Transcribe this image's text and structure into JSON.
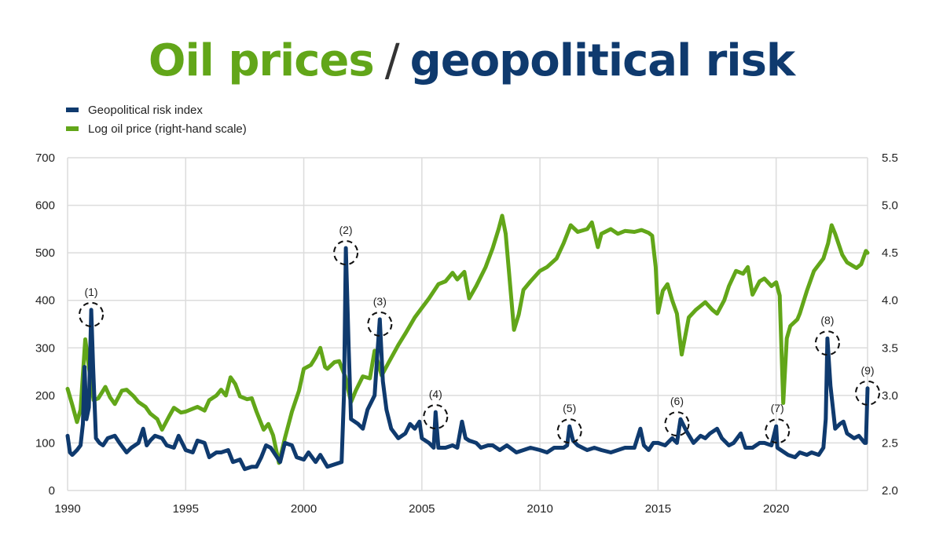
{
  "title": {
    "part1": "Oil prices",
    "separator": "/",
    "part2": "geopolitical risk"
  },
  "colors": {
    "oil": "#62a619",
    "gpr": "#0f3a6e",
    "grid": "#dcdcdc"
  },
  "chart_data": {
    "type": "line",
    "title": "Oil prices / geopolitical risk",
    "xlabel": "",
    "ylabel": "",
    "y2label": "",
    "xlim": [
      1990,
      2023.87
    ],
    "ylim": [
      0,
      700
    ],
    "y2lim": [
      2.0,
      5.5
    ],
    "grid": true,
    "legend_position": "top-left",
    "x_ticks": [
      1990,
      1995,
      2000,
      2005,
      2010,
      2015,
      2020
    ],
    "x_tick_labels": [
      "1990",
      "1995",
      "2000",
      "2005",
      "2010",
      "2015",
      "2020"
    ],
    "y_ticks": [
      0,
      100,
      200,
      300,
      400,
      500,
      600,
      700
    ],
    "y_tick_labels": [
      "0",
      "100",
      "200",
      "300",
      "400",
      "500",
      "600",
      "700"
    ],
    "y2_ticks": [
      2.0,
      2.5,
      3.0,
      3.5,
      4.0,
      4.5,
      5.0,
      5.5
    ],
    "y2_tick_labels": [
      "2.0",
      "2.5",
      "3.0",
      "3.5",
      "4.0",
      "4.5",
      "5.0",
      "5.5"
    ],
    "series": [
      {
        "name": "Geopolitical risk index",
        "axis": "left",
        "x": [
          1990.0,
          1990.1,
          1990.2,
          1990.4,
          1990.55,
          1990.65,
          1990.72,
          1990.8,
          1990.9,
          1991.0,
          1991.08,
          1991.2,
          1991.35,
          1991.5,
          1991.7,
          1992.0,
          1992.2,
          1992.5,
          1992.7,
          1993.0,
          1993.2,
          1993.35,
          1993.5,
          1993.7,
          1994.0,
          1994.2,
          1994.5,
          1994.7,
          1995.0,
          1995.3,
          1995.5,
          1995.8,
          1996.0,
          1996.3,
          1996.5,
          1996.8,
          1997.0,
          1997.3,
          1997.5,
          1997.8,
          1998.0,
          1998.2,
          1998.4,
          1998.6,
          1998.8,
          1999.0,
          1999.2,
          1999.5,
          1999.7,
          2000.0,
          2000.2,
          2000.5,
          2000.7,
          2001.0,
          2001.3,
          2001.6,
          2001.7,
          2001.78,
          2001.9,
          2002.0,
          2002.3,
          2002.5,
          2002.7,
          2003.0,
          2003.12,
          2003.22,
          2003.35,
          2003.5,
          2003.7,
          2004.0,
          2004.3,
          2004.5,
          2004.7,
          2004.9,
          2005.0,
          2005.3,
          2005.5,
          2005.58,
          2005.7,
          2006.0,
          2006.3,
          2006.5,
          2006.7,
          2006.85,
          2007.0,
          2007.3,
          2007.5,
          2007.8,
          2008.0,
          2008.3,
          2008.6,
          2009.0,
          2009.3,
          2009.6,
          2010.0,
          2010.3,
          2010.6,
          2011.0,
          2011.15,
          2011.25,
          2011.4,
          2011.6,
          2012.0,
          2012.3,
          2012.6,
          2013.0,
          2013.3,
          2013.6,
          2014.0,
          2014.25,
          2014.4,
          2014.6,
          2014.8,
          2015.0,
          2015.3,
          2015.6,
          2015.8,
          2015.95,
          2016.2,
          2016.5,
          2016.8,
          2017.0,
          2017.2,
          2017.5,
          2017.7,
          2018.0,
          2018.2,
          2018.5,
          2018.7,
          2019.0,
          2019.3,
          2019.5,
          2019.8,
          2020.0,
          2020.05,
          2020.2,
          2020.5,
          2020.8,
          2021.0,
          2021.3,
          2021.5,
          2021.8,
          2022.0,
          2022.1,
          2022.17,
          2022.3,
          2022.5,
          2022.7,
          2022.85,
          2023.0,
          2023.3,
          2023.5,
          2023.75,
          2023.8,
          2023.87
        ],
        "values": [
          115,
          80,
          75,
          85,
          95,
          140,
          260,
          150,
          175,
          380,
          260,
          110,
          100,
          95,
          110,
          115,
          100,
          80,
          90,
          100,
          130,
          95,
          105,
          115,
          110,
          95,
          90,
          115,
          85,
          80,
          105,
          100,
          70,
          80,
          80,
          85,
          60,
          65,
          45,
          50,
          50,
          70,
          95,
          90,
          75,
          60,
          100,
          95,
          70,
          65,
          80,
          60,
          75,
          50,
          55,
          60,
          200,
          510,
          300,
          150,
          140,
          130,
          170,
          200,
          290,
          360,
          230,
          170,
          130,
          110,
          120,
          140,
          130,
          145,
          110,
          100,
          90,
          165,
          90,
          90,
          95,
          90,
          145,
          110,
          105,
          100,
          90,
          95,
          95,
          85,
          95,
          80,
          85,
          90,
          85,
          80,
          90,
          90,
          95,
          135,
          105,
          95,
          85,
          90,
          85,
          80,
          85,
          90,
          90,
          130,
          95,
          85,
          100,
          100,
          95,
          110,
          100,
          150,
          125,
          100,
          115,
          110,
          120,
          130,
          110,
          95,
          100,
          120,
          90,
          90,
          100,
          100,
          95,
          135,
          90,
          85,
          75,
          70,
          80,
          75,
          80,
          75,
          90,
          150,
          320,
          220,
          130,
          140,
          145,
          120,
          110,
          115,
          100,
          100,
          215
        ]
      },
      {
        "name": "Log oil price (right-hand scale)",
        "axis": "right",
        "x": [
          1990.0,
          1990.2,
          1990.4,
          1990.55,
          1990.75,
          1990.9,
          1991.1,
          1991.3,
          1991.6,
          1991.8,
          1992.0,
          1992.3,
          1992.5,
          1992.8,
          1993.0,
          1993.3,
          1993.5,
          1993.8,
          1994.0,
          1994.3,
          1994.5,
          1994.8,
          1995.0,
          1995.3,
          1995.5,
          1995.8,
          1996.0,
          1996.3,
          1996.5,
          1996.7,
          1996.9,
          1997.1,
          1997.3,
          1997.6,
          1997.8,
          1998.0,
          1998.3,
          1998.5,
          1998.7,
          1998.95,
          1999.2,
          1999.5,
          1999.8,
          2000.0,
          2000.3,
          2000.5,
          2000.7,
          2000.9,
          2001.0,
          2001.3,
          2001.5,
          2001.75,
          2002.0,
          2002.2,
          2002.5,
          2002.8,
          2003.0,
          2003.3,
          2003.6,
          2004.0,
          2004.3,
          2004.7,
          2005.0,
          2005.3,
          2005.7,
          2006.0,
          2006.3,
          2006.5,
          2006.8,
          2007.0,
          2007.3,
          2007.7,
          2008.0,
          2008.25,
          2008.4,
          2008.55,
          2008.9,
          2009.1,
          2009.3,
          2009.6,
          2010.0,
          2010.3,
          2010.7,
          2011.0,
          2011.3,
          2011.6,
          2012.0,
          2012.2,
          2012.45,
          2012.6,
          2013.0,
          2013.3,
          2013.6,
          2014.0,
          2014.3,
          2014.6,
          2014.75,
          2014.9,
          2015.0,
          2015.2,
          2015.4,
          2015.6,
          2015.8,
          2016.0,
          2016.3,
          2016.6,
          2017.0,
          2017.3,
          2017.5,
          2017.8,
          2018.0,
          2018.3,
          2018.6,
          2018.8,
          2019.0,
          2019.3,
          2019.5,
          2019.8,
          2020.0,
          2020.15,
          2020.3,
          2020.45,
          2020.6,
          2020.9,
          2021.0,
          2021.3,
          2021.6,
          2022.0,
          2022.2,
          2022.35,
          2022.5,
          2022.8,
          2023.0,
          2023.4,
          2023.6,
          2023.8,
          2023.87
        ],
        "values": [
          3.07,
          2.9,
          2.72,
          2.85,
          3.59,
          3.3,
          2.95,
          2.97,
          3.09,
          2.98,
          2.91,
          3.05,
          3.06,
          2.99,
          2.93,
          2.88,
          2.81,
          2.75,
          2.64,
          2.78,
          2.87,
          2.82,
          2.83,
          2.86,
          2.88,
          2.84,
          2.95,
          3.0,
          3.06,
          3.0,
          3.19,
          3.12,
          2.99,
          2.96,
          2.97,
          2.83,
          2.64,
          2.7,
          2.58,
          2.29,
          2.55,
          2.83,
          3.05,
          3.28,
          3.32,
          3.4,
          3.5,
          3.3,
          3.28,
          3.35,
          3.36,
          3.2,
          2.93,
          3.05,
          3.2,
          3.18,
          3.47,
          3.21,
          3.35,
          3.53,
          3.65,
          3.82,
          3.92,
          4.02,
          4.17,
          4.2,
          4.29,
          4.22,
          4.3,
          4.02,
          4.15,
          4.35,
          4.55,
          4.75,
          4.89,
          4.7,
          3.69,
          3.85,
          4.11,
          4.2,
          4.31,
          4.35,
          4.44,
          4.6,
          4.79,
          4.72,
          4.75,
          4.82,
          4.56,
          4.7,
          4.75,
          4.7,
          4.73,
          4.72,
          4.74,
          4.71,
          4.68,
          4.35,
          3.87,
          4.1,
          4.17,
          4.0,
          3.86,
          3.43,
          3.82,
          3.9,
          3.98,
          3.9,
          3.86,
          4.0,
          4.15,
          4.31,
          4.28,
          4.35,
          4.06,
          4.2,
          4.23,
          4.15,
          4.19,
          4.05,
          2.92,
          3.6,
          3.73,
          3.8,
          3.86,
          4.1,
          4.31,
          4.44,
          4.6,
          4.79,
          4.7,
          4.48,
          4.4,
          4.34,
          4.38,
          4.52,
          4.5
        ]
      }
    ],
    "annotations": [
      {
        "label": "(1)",
        "x": 1991.0,
        "y": 380
      },
      {
        "label": "(2)",
        "x": 2001.78,
        "y": 510
      },
      {
        "label": "(3)",
        "x": 2003.22,
        "y": 360
      },
      {
        "label": "(4)",
        "x": 2005.58,
        "y": 165
      },
      {
        "label": "(5)",
        "x": 2011.25,
        "y": 135
      },
      {
        "label": "(6)",
        "x": 2015.8,
        "y": 150
      },
      {
        "label": "(7)",
        "x": 2020.05,
        "y": 135
      },
      {
        "label": "(8)",
        "x": 2022.17,
        "y": 320
      },
      {
        "label": "(9)",
        "x": 2023.87,
        "y": 215
      }
    ]
  },
  "legend": [
    {
      "label": "Geopolitical risk index",
      "color": "#0f3a6e"
    },
    {
      "label": "Log oil price (right-hand scale)",
      "color": "#62a619"
    }
  ]
}
